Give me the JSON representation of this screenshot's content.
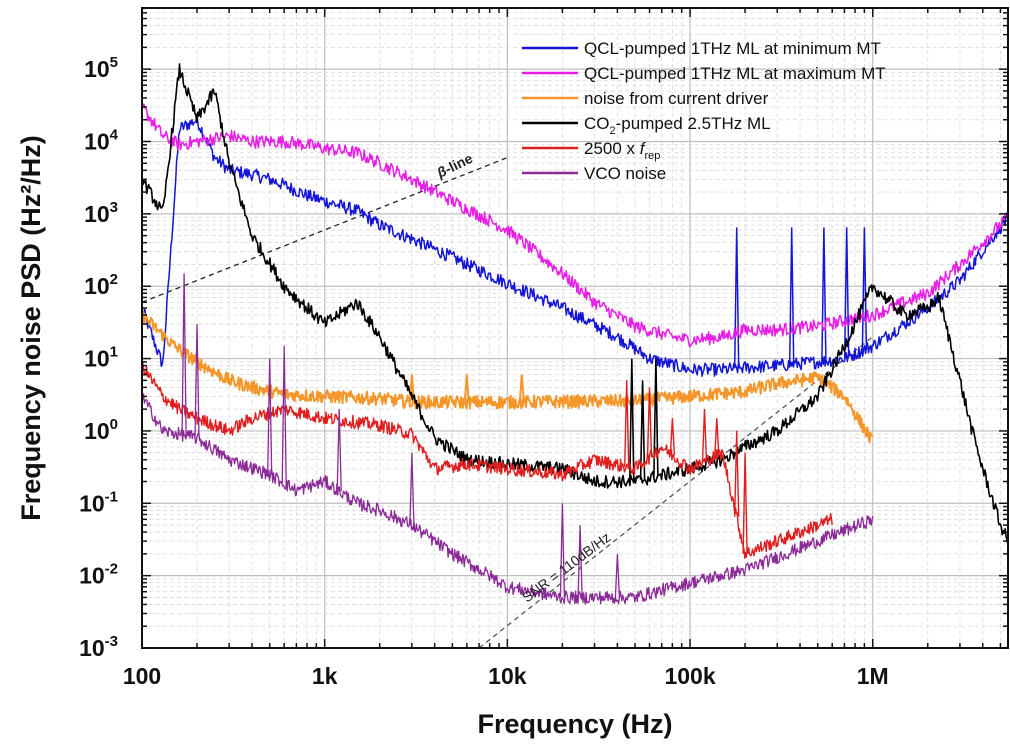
{
  "chart_data": {
    "type": "line",
    "title": "",
    "xlabel": "Frequency  (Hz)",
    "ylabel": "Frequency noise PSD (Hz²/Hz)",
    "xscale": "log",
    "yscale": "log",
    "xlim": [
      100,
      5500000
    ],
    "ylim": [
      0.001,
      700000
    ],
    "grid": true,
    "legend_position": "top-right",
    "x_ticks": [
      {
        "value": 100,
        "label": "100"
      },
      {
        "value": 1000,
        "label": "1k"
      },
      {
        "value": 10000,
        "label": "10k"
      },
      {
        "value": 100000,
        "label": "100k"
      },
      {
        "value": 1000000,
        "label": "1M"
      }
    ],
    "y_ticks": [
      {
        "value": 0.001,
        "mant": "10",
        "exp": "-3"
      },
      {
        "value": 0.01,
        "mant": "10",
        "exp": "-2"
      },
      {
        "value": 0.1,
        "mant": "10",
        "exp": "-1"
      },
      {
        "value": 1,
        "mant": "10",
        "exp": "0"
      },
      {
        "value": 10,
        "mant": "10",
        "exp": "1"
      },
      {
        "value": 100,
        "mant": "10",
        "exp": "2"
      },
      {
        "value": 1000,
        "mant": "10",
        "exp": "3"
      },
      {
        "value": 10000,
        "mant": "10",
        "exp": "4"
      },
      {
        "value": 100000,
        "mant": "10",
        "exp": "5"
      }
    ],
    "series": [
      {
        "name": "QCL-pumped 1THz ML at minimum MT",
        "color": "#1515d8",
        "width": 1.5,
        "points": [
          [
            100,
            50
          ],
          [
            130,
            8
          ],
          [
            160,
            15000
          ],
          [
            200,
            20000
          ],
          [
            250,
            6000
          ],
          [
            300,
            4000
          ],
          [
            400,
            3500
          ],
          [
            500,
            3000
          ],
          [
            600,
            2500
          ],
          [
            800,
            1800
          ],
          [
            1000,
            1500
          ],
          [
            1500,
            1100
          ],
          [
            2000,
            700
          ],
          [
            3000,
            450
          ],
          [
            5000,
            250
          ],
          [
            10000,
            110
          ],
          [
            20000,
            50
          ],
          [
            40000,
            20
          ],
          [
            60000,
            10
          ],
          [
            100000,
            7
          ],
          [
            150000,
            7
          ],
          [
            200000,
            7.5
          ],
          [
            300000,
            8
          ],
          [
            500000,
            9
          ],
          [
            700000,
            10
          ],
          [
            1000000,
            15
          ],
          [
            2000000,
            50
          ],
          [
            3000000,
            120
          ],
          [
            5500000,
            900
          ]
        ],
        "spikes": [
          [
            180000,
            650
          ],
          [
            360000,
            650
          ],
          [
            540000,
            650
          ],
          [
            720000,
            650
          ],
          [
            900000,
            650
          ]
        ]
      },
      {
        "name": "QCL-pumped 1THz ML at maximum MT",
        "color": "#e61ee6",
        "width": 1.5,
        "points": [
          [
            100,
            30000
          ],
          [
            130,
            12000
          ],
          [
            160,
            9000
          ],
          [
            200,
            10000
          ],
          [
            300,
            12000
          ],
          [
            400,
            10000
          ],
          [
            600,
            10000
          ],
          [
            800,
            9000
          ],
          [
            1000,
            8000
          ],
          [
            1500,
            7000
          ],
          [
            2000,
            5000
          ],
          [
            3000,
            3000
          ],
          [
            5000,
            1500
          ],
          [
            10000,
            600
          ],
          [
            20000,
            150
          ],
          [
            30000,
            60
          ],
          [
            50000,
            28
          ],
          [
            80000,
            20
          ],
          [
            100000,
            18
          ],
          [
            150000,
            20
          ],
          [
            200000,
            25
          ],
          [
            300000,
            25
          ],
          [
            500000,
            28
          ],
          [
            1000000,
            40
          ],
          [
            2000000,
            80
          ],
          [
            3000000,
            200
          ],
          [
            5500000,
            900
          ]
        ]
      },
      {
        "name": "noise from current driver",
        "color": "#f5962a",
        "width": 2,
        "points": [
          [
            100,
            40
          ],
          [
            150,
            15
          ],
          [
            200,
            9
          ],
          [
            300,
            5
          ],
          [
            400,
            4
          ],
          [
            600,
            3.2
          ],
          [
            1000,
            3
          ],
          [
            2000,
            2.8
          ],
          [
            3000,
            2.5
          ],
          [
            10000,
            2.5
          ],
          [
            50000,
            2.6
          ],
          [
            100000,
            3
          ],
          [
            200000,
            3.5
          ],
          [
            300000,
            4.5
          ],
          [
            500000,
            5.5
          ],
          [
            700000,
            3
          ],
          [
            1000000,
            0.7
          ]
        ],
        "spikes": [
          [
            3000,
            6
          ],
          [
            6000,
            6
          ],
          [
            12000,
            6
          ]
        ]
      },
      {
        "name": "CO2-pumped 2.5THz ML",
        "color": "#000000",
        "width": 1.6,
        "points": [
          [
            100,
            3000
          ],
          [
            130,
            1000
          ],
          [
            160,
            100000
          ],
          [
            200,
            20000
          ],
          [
            250,
            50000
          ],
          [
            300,
            5000
          ],
          [
            400,
            500
          ],
          [
            600,
            100
          ],
          [
            800,
            50
          ],
          [
            1000,
            30
          ],
          [
            1500,
            60
          ],
          [
            2000,
            20
          ],
          [
            3000,
            3
          ],
          [
            4000,
            0.8
          ],
          [
            6000,
            0.4
          ],
          [
            10000,
            0.35
          ],
          [
            20000,
            0.3
          ],
          [
            30000,
            0.2
          ],
          [
            50000,
            0.2
          ],
          [
            100000,
            0.3
          ],
          [
            150000,
            0.4
          ],
          [
            200000,
            0.6
          ],
          [
            300000,
            1
          ],
          [
            500000,
            3
          ],
          [
            700000,
            15
          ],
          [
            1000000,
            100
          ],
          [
            1500000,
            40
          ],
          [
            2000000,
            50
          ],
          [
            2300000,
            70
          ],
          [
            2500000,
            30
          ],
          [
            3000000,
            5
          ],
          [
            3500000,
            1
          ],
          [
            4000000,
            0.3
          ],
          [
            5000000,
            0.05
          ],
          [
            5500000,
            0.03
          ]
        ],
        "spikes": [
          [
            48000,
            10
          ],
          [
            55000,
            5
          ],
          [
            65000,
            10
          ]
        ]
      },
      {
        "name": "2500 x frep",
        "color": "#e01e1e",
        "width": 1.4,
        "points": [
          [
            100,
            8
          ],
          [
            130,
            3
          ],
          [
            160,
            2
          ],
          [
            200,
            1.5
          ],
          [
            300,
            1
          ],
          [
            400,
            1.5
          ],
          [
            600,
            2
          ],
          [
            1000,
            1.5
          ],
          [
            2000,
            1.2
          ],
          [
            3000,
            0.9
          ],
          [
            4000,
            0.3
          ],
          [
            6000,
            0.35
          ],
          [
            10000,
            0.3
          ],
          [
            20000,
            0.25
          ],
          [
            30000,
            0.4
          ],
          [
            50000,
            0.3
          ],
          [
            70000,
            0.6
          ],
          [
            100000,
            0.3
          ],
          [
            150000,
            0.5
          ],
          [
            200000,
            0.02
          ],
          [
            300000,
            0.03
          ],
          [
            500000,
            0.05
          ],
          [
            600000,
            0.06
          ]
        ],
        "spikes": [
          [
            45000,
            5
          ],
          [
            60000,
            4
          ],
          [
            80000,
            1.5
          ],
          [
            120000,
            2
          ],
          [
            140000,
            1.5
          ],
          [
            180000,
            1
          ],
          [
            200000,
            0.5
          ]
        ]
      },
      {
        "name": "VCO noise",
        "color": "#8a2a96",
        "width": 1.3,
        "points": [
          [
            100,
            3
          ],
          [
            130,
            1
          ],
          [
            160,
            0.9
          ],
          [
            200,
            0.8
          ],
          [
            300,
            0.4
          ],
          [
            500,
            0.25
          ],
          [
            700,
            0.15
          ],
          [
            1000,
            0.2
          ],
          [
            1500,
            0.1
          ],
          [
            2000,
            0.08
          ],
          [
            3000,
            0.05
          ],
          [
            5000,
            0.02
          ],
          [
            8000,
            0.01
          ],
          [
            10000,
            0.007
          ],
          [
            20000,
            0.005
          ],
          [
            50000,
            0.005
          ],
          [
            100000,
            0.008
          ],
          [
            200000,
            0.012
          ],
          [
            500000,
            0.03
          ],
          [
            1000000,
            0.06
          ]
        ],
        "spikes": [
          [
            170,
            150
          ],
          [
            200,
            30
          ],
          [
            500,
            10
          ],
          [
            600,
            15
          ],
          [
            1200,
            2
          ],
          [
            3000,
            0.5
          ],
          [
            20000,
            0.1
          ],
          [
            25000,
            0.05
          ],
          [
            40000,
            0.02
          ]
        ]
      }
    ],
    "reference_lines": [
      {
        "label": "β-line",
        "x": [
          100,
          10000
        ],
        "y": [
          60,
          6000
        ],
        "color": "#222"
      },
      {
        "label": "SNR = 110dB/Hz",
        "x": [
          7000,
          1000000
        ],
        "y": [
          0.001,
          20
        ],
        "color": "#555"
      }
    ]
  },
  "legend": [
    {
      "text": "QCL-pumped 1THz ML at minimum MT",
      "color": "#1515d8"
    },
    {
      "text": "QCL-pumped 1THz ML at maximum MT",
      "color": "#e61ee6"
    },
    {
      "text": "noise from current driver",
      "color": "#f5962a"
    },
    {
      "text": "CO",
      "sub": "2",
      "rest": "-pumped 2.5THz ML",
      "color": "#000000"
    },
    {
      "text": "2500 x ",
      "italic": "f",
      "sub": "rep",
      "color": "#e01e1e"
    },
    {
      "text": "VCO noise",
      "color": "#8a2a96"
    }
  ]
}
